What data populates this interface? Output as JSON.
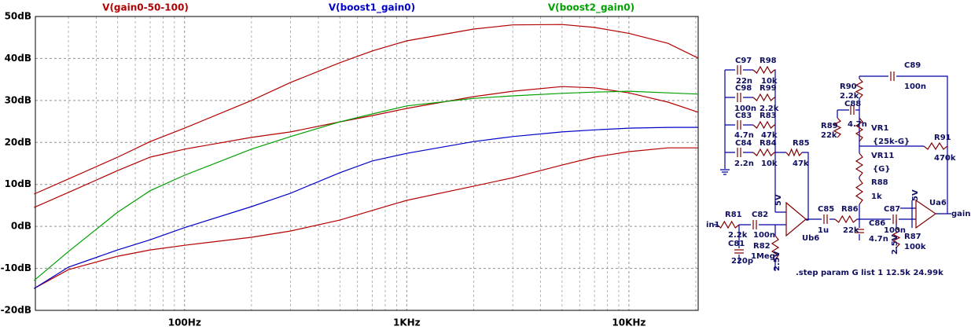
{
  "chart_data": {
    "type": "line",
    "x": [
      21,
      30,
      50,
      70,
      100,
      200,
      300,
      500,
      700,
      1000,
      2000,
      3000,
      5000,
      7000,
      10000,
      15000,
      20500
    ],
    "series": [
      {
        "name": "V(gain0-50-100)",
        "color": "#b40000",
        "values": [
          7.7,
          11.3,
          16.5,
          20.2,
          23.4,
          30,
          34.3,
          39,
          41.8,
          44.2,
          47,
          48,
          48.1,
          47.4,
          46,
          43.6,
          40.1
        ]
      },
      {
        "color": "#b40000",
        "values": [
          4.5,
          8.1,
          13.3,
          16.5,
          18.4,
          21.2,
          22.5,
          24.9,
          26.4,
          28.1,
          30.9,
          32.2,
          33.3,
          33,
          31.8,
          29.6,
          27.2
        ]
      },
      {
        "color": "#b40000",
        "values": [
          -14.8,
          -10.3,
          -7.1,
          -5.6,
          -4.5,
          -2.6,
          -1.1,
          1.5,
          3.8,
          6.2,
          9.6,
          11.6,
          14.6,
          16.5,
          17.8,
          18.7,
          18.7
        ]
      },
      {
        "name": "V(boost1_gain0)",
        "color": "#0000c8",
        "values": [
          -14.8,
          -9.7,
          -5.6,
          -3.2,
          -0.3,
          4.7,
          7.9,
          12.8,
          15.6,
          17.4,
          20.2,
          21.4,
          22.5,
          23,
          23.4,
          23.6,
          23.6
        ]
      },
      {
        "name": "V(boost2_gain0)",
        "color": "#00a000",
        "values": [
          -12.9,
          -6,
          3.4,
          8.5,
          12.2,
          18.4,
          21.4,
          24.9,
          26.8,
          28.7,
          30.5,
          31.1,
          31.7,
          32,
          32.2,
          31.8,
          31.5
        ]
      }
    ],
    "xlim": [
      21.3,
      20500
    ],
    "xlog": true,
    "xticks": [
      {
        "value": 100,
        "label": "100Hz"
      },
      {
        "value": 1000,
        "label": "1KHz"
      },
      {
        "value": 10000,
        "label": "10KHz"
      }
    ],
    "xminorticks": [
      30,
      40,
      50,
      60,
      70,
      80,
      90,
      200,
      300,
      400,
      500,
      600,
      700,
      800,
      900,
      2000,
      3000,
      4000,
      5000,
      6000,
      7000,
      8000,
      9000,
      20000
    ],
    "ylim": [
      -20,
      50
    ],
    "yticks": [
      {
        "value": -20,
        "label": "-20dB"
      },
      {
        "value": -10,
        "label": "-10dB"
      },
      {
        "value": 0,
        "label": "0dB"
      },
      {
        "value": 10,
        "label": "10dB"
      },
      {
        "value": 20,
        "label": "20dB"
      },
      {
        "value": 30,
        "label": "30dB"
      },
      {
        "value": 40,
        "label": "40dB"
      },
      {
        "value": 50,
        "label": "50dB"
      }
    ],
    "grid": true
  },
  "schematic": {
    "labels": [
      "C97",
      "R98",
      "22n",
      "10k",
      "C98",
      "R99",
      "100n",
      "2.2k",
      "C83",
      "R83",
      "4.7n",
      "47k",
      "C84",
      "R84",
      "2.2n",
      "10k",
      "R85",
      "47k",
      "R81",
      "2.2k",
      "in1",
      "C82",
      "100n",
      "C81",
      "220p",
      "R82",
      "1Meg",
      "5V",
      "Ub6",
      "2.5V",
      "C85",
      "1u",
      "R86",
      "22k",
      "C86",
      "4.7n",
      "C87",
      "100n",
      "R87",
      "100k",
      "2.5V",
      "5V",
      "Ua6",
      "gain",
      "C89",
      "100n",
      "R90",
      "2.2k",
      "C88",
      "R89",
      "22k",
      "4.7n",
      "VR1",
      "{25k-G}",
      "VR11",
      "{G}",
      "R88",
      "1k",
      "R91",
      "470k",
      ".step param G list 1 12.5k 24.99k"
    ]
  }
}
